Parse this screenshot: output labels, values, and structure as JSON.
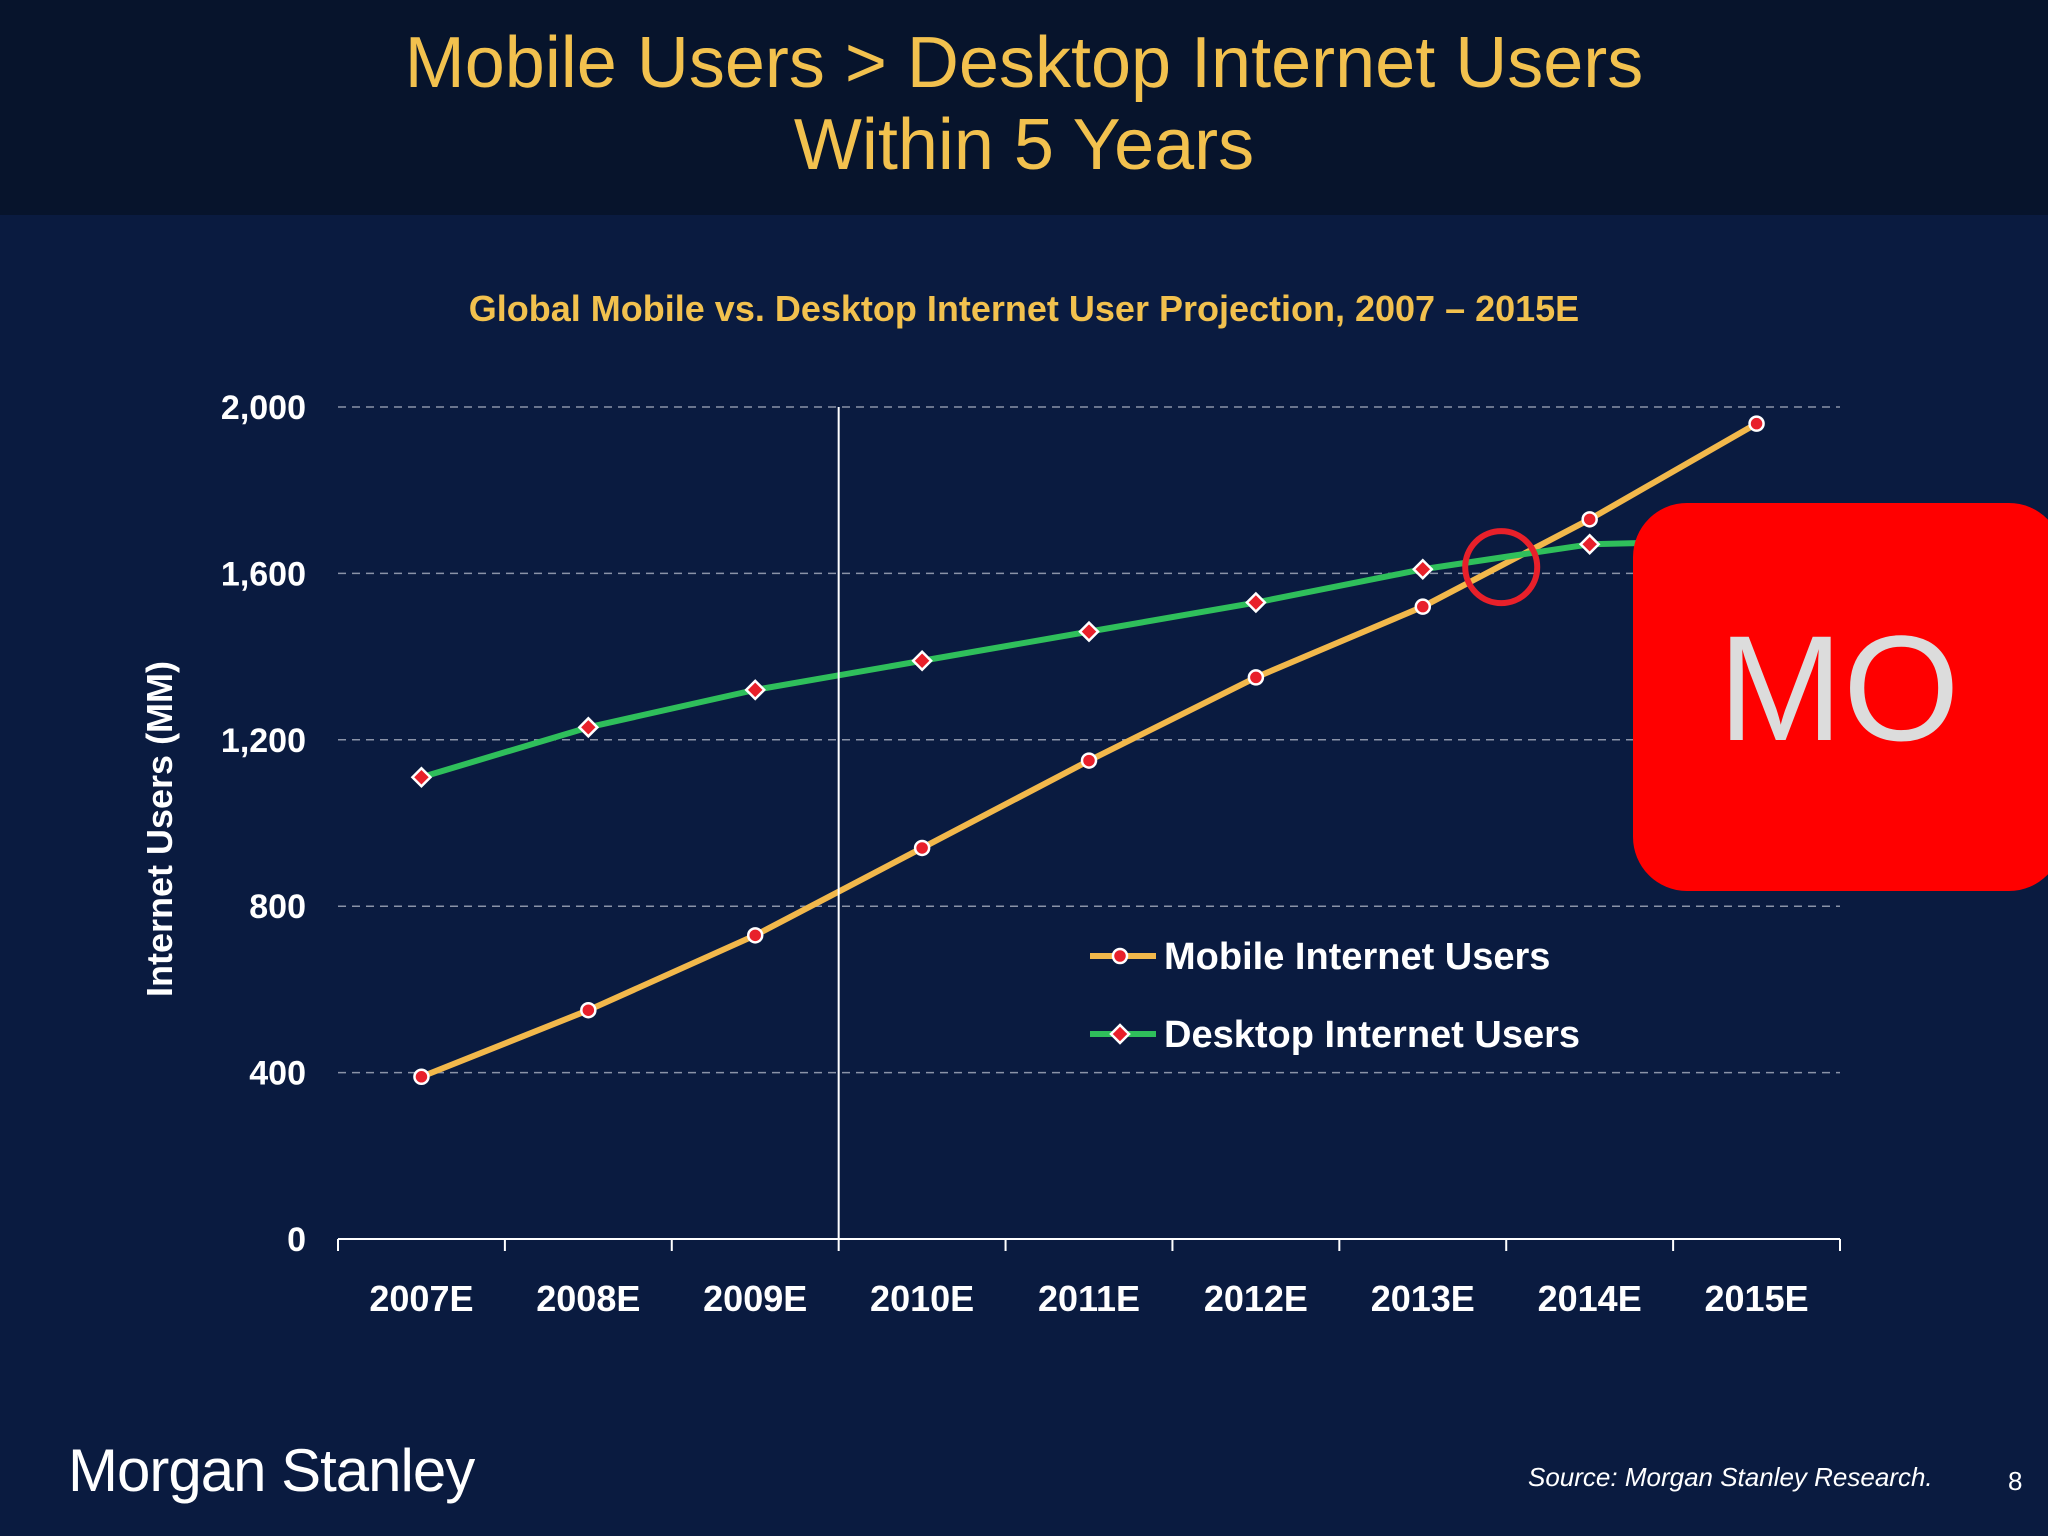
{
  "slide": {
    "headline_line1": "Mobile Users > Desktop Internet Users",
    "headline_line2": "Within 5 Years",
    "logo": "Morgan Stanley",
    "source": "Source: Morgan Stanley Research.",
    "page_number": "8",
    "badge_text": "MO"
  },
  "colors": {
    "background": "#0a1b40",
    "header": "#07142c",
    "title": "#f2c14e",
    "mobile": "#f2b84b",
    "desktop": "#2fbf5b",
    "marker": "#e8202a",
    "badge": "#ff0000"
  },
  "chart_data": {
    "type": "line",
    "title": "Global Mobile vs. Desktop Internet User Projection, 2007 – 2015E",
    "xlabel": "",
    "ylabel": "Internet Users (MM)",
    "ylim": [
      0,
      2000
    ],
    "yticks": [
      0,
      400,
      800,
      1200,
      1600,
      2000
    ],
    "ytick_labels": [
      "0",
      "400",
      "800",
      "1,200",
      "1,600",
      "2,000"
    ],
    "categories": [
      "2007E",
      "2008E",
      "2009E",
      "2010E",
      "2011E",
      "2012E",
      "2013E",
      "2014E",
      "2015E"
    ],
    "series": [
      {
        "name": "Mobile Internet Users",
        "values": [
          390,
          550,
          730,
          940,
          1150,
          1350,
          1520,
          1730,
          1960
        ]
      },
      {
        "name": "Desktop Internet Users",
        "values": [
          1110,
          1230,
          1320,
          1390,
          1460,
          1530,
          1610,
          1670,
          1680
        ]
      }
    ],
    "grid": true,
    "legend": "center-right",
    "annotations": [
      "crossover circle between 2013E and 2014E",
      "vertical divider line between 2009E and 2010E"
    ]
  }
}
